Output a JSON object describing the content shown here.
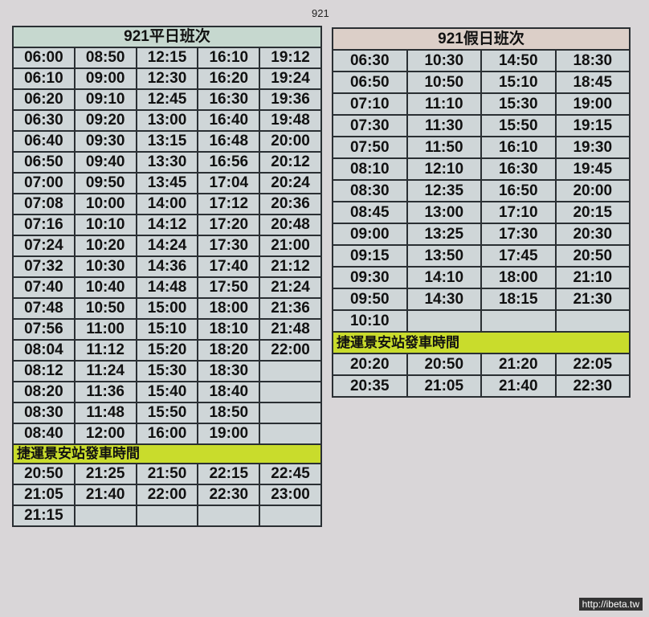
{
  "page_label": "921",
  "weekday": {
    "title": "921平日班次",
    "rows": [
      [
        "06:00",
        "08:50",
        "12:15",
        "16:10",
        "19:12"
      ],
      [
        "06:10",
        "09:00",
        "12:30",
        "16:20",
        "19:24"
      ],
      [
        "06:20",
        "09:10",
        "12:45",
        "16:30",
        "19:36"
      ],
      [
        "06:30",
        "09:20",
        "13:00",
        "16:40",
        "19:48"
      ],
      [
        "06:40",
        "09:30",
        "13:15",
        "16:48",
        "20:00"
      ],
      [
        "06:50",
        "09:40",
        "13:30",
        "16:56",
        "20:12"
      ],
      [
        "07:00",
        "09:50",
        "13:45",
        "17:04",
        "20:24"
      ],
      [
        "07:08",
        "10:00",
        "14:00",
        "17:12",
        "20:36"
      ],
      [
        "07:16",
        "10:10",
        "14:12",
        "17:20",
        "20:48"
      ],
      [
        "07:24",
        "10:20",
        "14:24",
        "17:30",
        "21:00"
      ],
      [
        "07:32",
        "10:30",
        "14:36",
        "17:40",
        "21:12"
      ],
      [
        "07:40",
        "10:40",
        "14:48",
        "17:50",
        "21:24"
      ],
      [
        "07:48",
        "10:50",
        "15:00",
        "18:00",
        "21:36"
      ],
      [
        "07:56",
        "11:00",
        "15:10",
        "18:10",
        "21:48"
      ],
      [
        "08:04",
        "11:12",
        "15:20",
        "18:20",
        "22:00"
      ],
      [
        "08:12",
        "11:24",
        "15:30",
        "18:30",
        ""
      ],
      [
        "08:20",
        "11:36",
        "15:40",
        "18:40",
        ""
      ],
      [
        "08:30",
        "11:48",
        "15:50",
        "18:50",
        ""
      ],
      [
        "08:40",
        "12:00",
        "16:00",
        "19:00",
        ""
      ]
    ],
    "mrt_label": "捷運景安站發車時間",
    "mrt_rows": [
      [
        "20:50",
        "21:25",
        "21:50",
        "22:15",
        "22:45"
      ],
      [
        "21:05",
        "21:40",
        "22:00",
        "22:30",
        "23:00"
      ],
      [
        "21:15",
        "",
        "",
        "",
        ""
      ]
    ]
  },
  "holiday": {
    "title": "921假日班次",
    "rows": [
      [
        "06:30",
        "10:30",
        "14:50",
        "18:30"
      ],
      [
        "06:50",
        "10:50",
        "15:10",
        "18:45"
      ],
      [
        "07:10",
        "11:10",
        "15:30",
        "19:00"
      ],
      [
        "07:30",
        "11:30",
        "15:50",
        "19:15"
      ],
      [
        "07:50",
        "11:50",
        "16:10",
        "19:30"
      ],
      [
        "08:10",
        "12:10",
        "16:30",
        "19:45"
      ],
      [
        "08:30",
        "12:35",
        "16:50",
        "20:00"
      ],
      [
        "08:45",
        "13:00",
        "17:10",
        "20:15"
      ],
      [
        "09:00",
        "13:25",
        "17:30",
        "20:30"
      ],
      [
        "09:15",
        "13:50",
        "17:45",
        "20:50"
      ],
      [
        "09:30",
        "14:10",
        "18:00",
        "21:10"
      ],
      [
        "09:50",
        "14:30",
        "18:15",
        "21:30"
      ],
      [
        "10:10",
        "",
        "",
        ""
      ]
    ],
    "mrt_label": "捷運景安站發車時間",
    "mrt_rows": [
      [
        "20:20",
        "20:50",
        "21:20",
        "22:05"
      ],
      [
        "20:35",
        "21:05",
        "21:40",
        "22:30"
      ]
    ]
  },
  "watermark": "http://ibeta.tw",
  "colors": {
    "band": "#c9dc2c",
    "weekday_header": "#c6d8cf",
    "holiday_header": "#dccfc8"
  }
}
